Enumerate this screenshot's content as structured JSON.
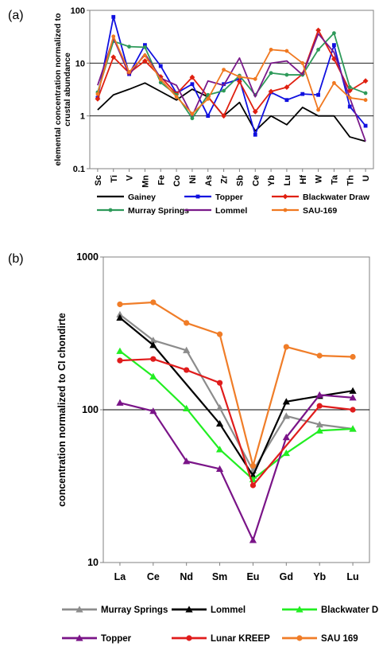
{
  "panels": {
    "a": {
      "label": "(a)"
    },
    "b": {
      "label": "(b)"
    }
  },
  "chart_data": [
    {
      "type": "line",
      "panel": "(a)",
      "title": "",
      "xlabel": "",
      "ylabel_line1": "elemental concentration normalized to",
      "ylabel_line2": "crustal abundance",
      "yscale": "log",
      "ylim": [
        0.1,
        100
      ],
      "yticks": [
        "0.1",
        "1",
        "10",
        "100"
      ],
      "grid": "horizontal major lines",
      "legend_position": "bottom",
      "categories": [
        "Sc",
        "Ti",
        "V",
        "Mn",
        "Fe",
        "Co",
        "Ni",
        "As",
        "Zr",
        "Sb",
        "Ce",
        "Yb",
        "Lu",
        "Hf",
        "W",
        "Ta",
        "Th",
        "U"
      ],
      "series": [
        {
          "name": "Gainey",
          "color": "#000000",
          "marker": "none",
          "values": [
            1.3,
            2.5,
            3.2,
            4.2,
            2.9,
            2.0,
            3.2,
            2.3,
            1.0,
            1.8,
            0.52,
            1.0,
            0.68,
            1.45,
            1.0,
            1.0,
            0.4,
            0.33
          ]
        },
        {
          "name": "Topper",
          "color": "#1010e0",
          "marker": "square",
          "values": [
            2.2,
            75,
            6.2,
            22,
            8.8,
            2.7,
            4.0,
            1.0,
            4.0,
            5.0,
            0.44,
            2.8,
            2.0,
            2.6,
            2.5,
            22,
            1.5,
            0.65
          ]
        },
        {
          "name": "Blackwater Draw",
          "color": "#e02010",
          "marker": "diamond",
          "values": [
            2.1,
            13,
            6.5,
            11,
            5.5,
            2.6,
            5.4,
            2.3,
            1.0,
            4.5,
            1.2,
            2.9,
            3.5,
            6.2,
            42,
            12,
            3.0,
            4.6
          ]
        },
        {
          "name": "Murray Springs",
          "color": "#2e9a5a",
          "marker": "circle",
          "values": [
            2.8,
            26,
            20.5,
            20,
            4.3,
            2.5,
            0.9,
            2.5,
            3.0,
            5.8,
            2.5,
            6.5,
            6.0,
            6.0,
            18,
            37,
            3.5,
            2.7
          ]
        },
        {
          "name": "Lommel",
          "color": "#7a1a8a",
          "marker": "none",
          "values": [
            3.8,
            30,
            6.0,
            15,
            5.2,
            3.8,
            1.0,
            4.6,
            3.8,
            12.5,
            2.3,
            10,
            11,
            6.0,
            36,
            16,
            2.2,
            0.33
          ]
        },
        {
          "name": "SAU-169",
          "color": "#f07820",
          "marker": "circle",
          "values": [
            2.6,
            32,
            6.8,
            14,
            4.9,
            2.3,
            1.1,
            2.1,
            7.5,
            5.5,
            5.0,
            18,
            17,
            10,
            1.3,
            4.2,
            2.2,
            2.0
          ]
        }
      ]
    },
    {
      "type": "line",
      "panel": "(b)",
      "title": "",
      "xlabel": "",
      "ylabel": "concentration normalized to CI chondirte",
      "yscale": "log",
      "ylim": [
        10,
        1000
      ],
      "yticks": [
        "10",
        "100",
        "1000"
      ],
      "grid": "horizontal major line at 100",
      "legend_position": "bottom",
      "categories": [
        "La",
        "Ce",
        "Nd",
        "Sm",
        "Eu",
        "Gd",
        "Yb",
        "Lu"
      ],
      "series": [
        {
          "name": "Murray Springs",
          "color": "#8c8c8c",
          "marker": "triangle",
          "values": [
            420,
            285,
            245,
            103,
            40,
            91,
            80,
            75
          ]
        },
        {
          "name": "Lommel",
          "color": "#000000",
          "marker": "triangle",
          "values": [
            400,
            265,
            null,
            81,
            37,
            113,
            123,
            133
          ]
        },
        {
          "name": "Blackwater Draw",
          "color": "#22ee22",
          "marker": "triangle",
          "values": [
            242,
            165,
            102,
            55,
            35,
            52,
            73,
            75
          ]
        },
        {
          "name": "Topper",
          "color": "#7a1488",
          "marker": "triangle",
          "values": [
            111,
            98,
            46,
            41,
            14,
            66,
            125,
            120
          ]
        },
        {
          "name": "Lunar KREEP",
          "color": "#e01c1c",
          "marker": "circle",
          "values": [
            210,
            215,
            182,
            150,
            32,
            null,
            106,
            100
          ]
        },
        {
          "name": "SAU 169",
          "color": "#f07d28",
          "marker": "circle",
          "values": [
            490,
            505,
            370,
            312,
            43,
            258,
            226,
            222
          ]
        }
      ]
    }
  ]
}
